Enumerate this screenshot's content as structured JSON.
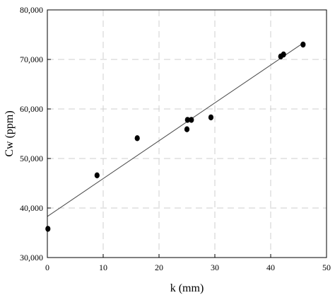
{
  "chart_data": {
    "type": "scatter",
    "title": "",
    "xlabel": "k (mm)",
    "ylabel": "Cw (ppm)",
    "xlim": [
      0,
      50
    ],
    "ylim": [
      30000,
      80000
    ],
    "x_ticks": [
      0,
      10,
      20,
      30,
      40,
      50
    ],
    "y_ticks": [
      30000,
      40000,
      50000,
      60000,
      70000,
      80000
    ],
    "x_tick_labels": [
      "0",
      "10",
      "20",
      "30",
      "40",
      "50"
    ],
    "y_tick_labels": [
      "30,000",
      "40,000",
      "50,000",
      "60,000",
      "70,000",
      "80,000"
    ],
    "grid": true,
    "grid_style": "dashed",
    "legend": "none",
    "point_color": "#000000",
    "line_color": "#4a4a4a",
    "series": [
      {
        "kind": "points",
        "x": [
          0.1,
          8.9,
          16.1,
          25.0,
          25.1,
          25.8,
          29.3,
          41.8,
          42.3,
          45.8
        ],
        "y": [
          35800,
          46600,
          54100,
          55900,
          57800,
          57800,
          58300,
          70600,
          71000,
          73000
        ]
      },
      {
        "kind": "fit-line",
        "x": [
          0,
          45.8
        ],
        "y": [
          38300,
          73300
        ]
      }
    ]
  }
}
